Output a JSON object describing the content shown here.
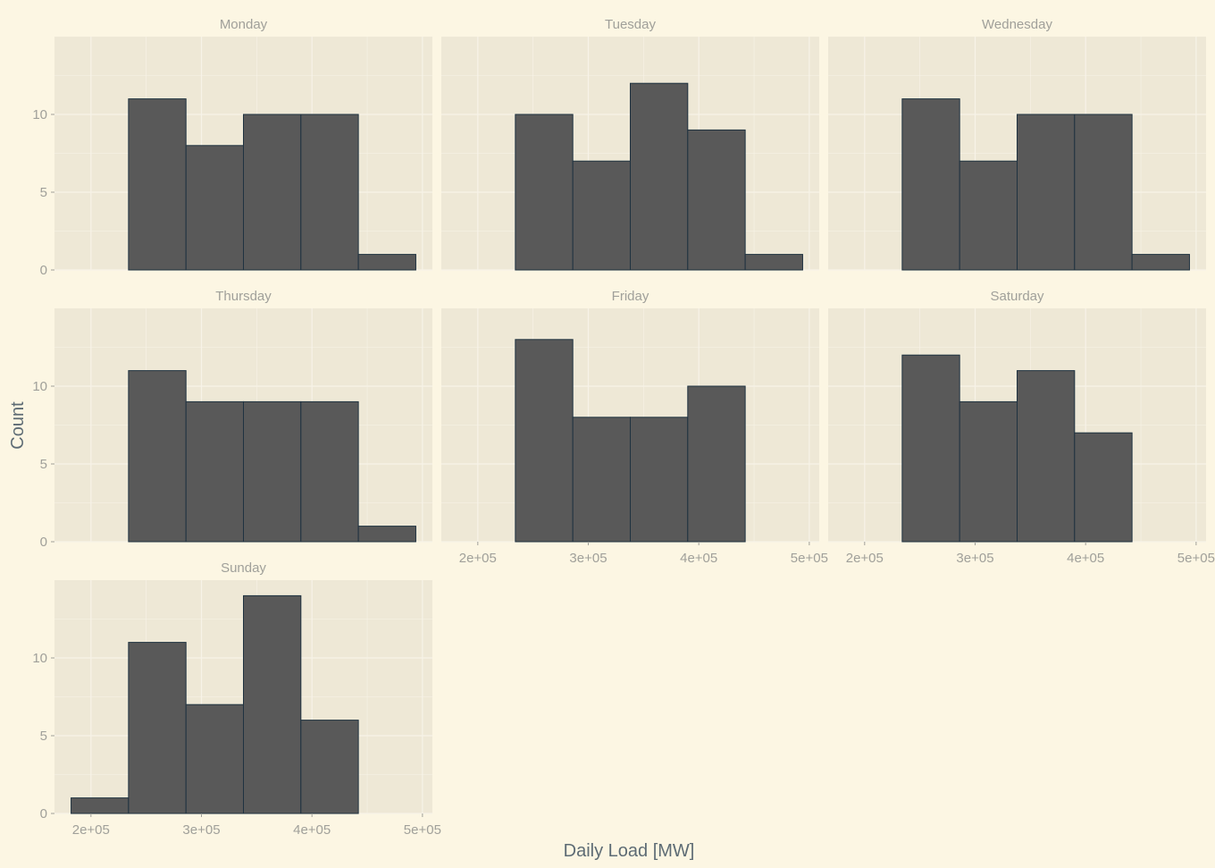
{
  "chart_data": {
    "type": "bar",
    "chart_kind": "faceted histogram",
    "xlabel": "Daily Load [MW]",
    "ylabel": "Count",
    "bin_edges": [
      182000,
      234000,
      286000,
      338000,
      390000,
      442000,
      494000
    ],
    "xlim": [
      167000,
      509000
    ],
    "ylim": [
      0,
      15
    ],
    "x_ticks": [
      200000,
      300000,
      400000,
      500000
    ],
    "x_tick_labels": [
      "2e+05",
      "3e+05",
      "4e+05",
      "5e+05"
    ],
    "y_ticks": [
      0,
      5,
      10
    ],
    "y_tick_labels": [
      "0",
      "5",
      "10"
    ],
    "grid": true,
    "colors": {
      "background": "#fcf6e3",
      "panel": "#eee8d6",
      "grid": "#f7f3e8",
      "bar_fill": "#595959",
      "bar_outline": "#1f3240",
      "strip_text": "#a0a09a",
      "tick_text": "#a0a09a",
      "axis_title": "#5d6b74"
    },
    "facets": [
      {
        "name": "Monday",
        "counts": [
          0,
          11,
          8,
          10,
          10,
          1
        ]
      },
      {
        "name": "Tuesday",
        "counts": [
          0,
          10,
          7,
          12,
          9,
          1
        ]
      },
      {
        "name": "Wednesday",
        "counts": [
          0,
          11,
          7,
          10,
          10,
          1
        ]
      },
      {
        "name": "Thursday",
        "counts": [
          0,
          11,
          9,
          9,
          9,
          1
        ]
      },
      {
        "name": "Friday",
        "counts": [
          0,
          13,
          8,
          8,
          10,
          0
        ]
      },
      {
        "name": "Saturday",
        "counts": [
          0,
          12,
          9,
          11,
          7,
          0
        ]
      },
      {
        "name": "Sunday",
        "counts": [
          1,
          11,
          7,
          14,
          6,
          0
        ]
      }
    ]
  }
}
